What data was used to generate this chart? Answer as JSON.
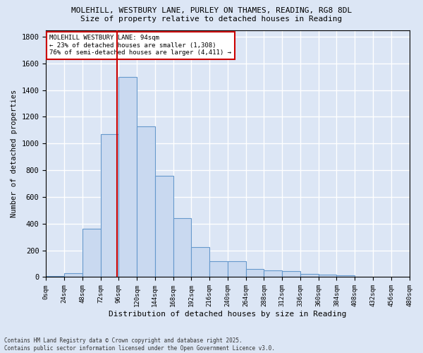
{
  "title1": "MOLEHILL, WESTBURY LANE, PURLEY ON THAMES, READING, RG8 8DL",
  "title2": "Size of property relative to detached houses in Reading",
  "xlabel": "Distribution of detached houses by size in Reading",
  "ylabel": "Number of detached properties",
  "annotation_title": "MOLEHILL WESTBURY LANE: 94sqm",
  "annotation_line1": "← 23% of detached houses are smaller (1,308)",
  "annotation_line2": "76% of semi-detached houses are larger (4,411) →",
  "property_size": 94,
  "bin_edges": [
    0,
    24,
    48,
    72,
    96,
    120,
    144,
    168,
    192,
    216,
    240,
    264,
    288,
    312,
    336,
    360,
    384,
    408,
    432,
    456,
    480
  ],
  "bin_counts": [
    10,
    30,
    360,
    1070,
    1500,
    1130,
    760,
    440,
    225,
    120,
    120,
    60,
    50,
    45,
    25,
    20,
    15,
    5,
    3,
    2
  ],
  "bar_color": "#c9d9f0",
  "bar_edge_color": "#6699cc",
  "vline_color": "#cc0000",
  "vline_x": 94,
  "annotation_box_color": "#ffffff",
  "annotation_box_edge": "#cc0000",
  "background_color": "#dce6f5",
  "fig_background_color": "#dce6f5",
  "grid_color": "#ffffff",
  "footer_line1": "Contains HM Land Registry data © Crown copyright and database right 2025.",
  "footer_line2": "Contains public sector information licensed under the Open Government Licence v3.0.",
  "ylim": [
    0,
    1850
  ],
  "xlim": [
    0,
    480
  ]
}
